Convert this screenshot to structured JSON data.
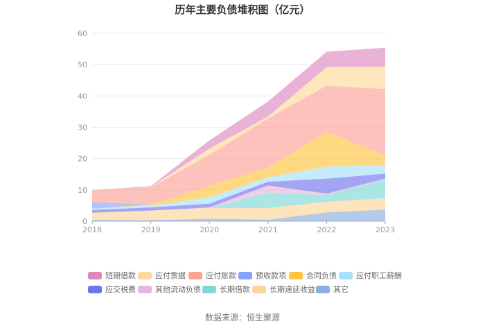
{
  "chart_data": {
    "type": "area",
    "stacked": true,
    "title": "历年主要负债堆积图（亿元）",
    "source": "数据来源：恒生聚源",
    "xlabel": "",
    "ylabel": "",
    "ylim": [
      0,
      60
    ],
    "yticks": [
      "0",
      "10",
      "20",
      "30",
      "40",
      "50",
      "60"
    ],
    "categories": [
      "2018",
      "2019",
      "2020",
      "2021",
      "2022",
      "2023"
    ],
    "grid": true,
    "legend_position": "bottom",
    "series": [
      {
        "name": "其它",
        "color": "#8aaee0",
        "values": [
          0.4,
          0.3,
          0.8,
          0.5,
          2.8,
          3.7
        ]
      },
      {
        "name": "长期递延收益",
        "color": "#fdd59a",
        "values": [
          2.3,
          3.1,
          3.4,
          3.7,
          3.4,
          3.6
        ]
      },
      {
        "name": "长期借款",
        "color": "#7fd8d6",
        "values": [
          0,
          0,
          0,
          5.0,
          2.2,
          6.1
        ]
      },
      {
        "name": "其他流动负债",
        "color": "#e8b6da",
        "values": [
          0,
          0,
          0.2,
          2.2,
          0.4,
          0.2
        ]
      },
      {
        "name": "应交税费",
        "color": "#7373f0",
        "values": [
          0.9,
          1.0,
          1.2,
          1.2,
          4.8,
          1.6
        ]
      },
      {
        "name": "应付职工薪酬",
        "color": "#a6e0fc",
        "values": [
          0.4,
          0.6,
          2.0,
          1.4,
          3.8,
          2.8
        ]
      },
      {
        "name": "合同负债",
        "color": "#ffc53d",
        "values": [
          0,
          0.4,
          3.6,
          3.2,
          11.1,
          3.0
        ]
      },
      {
        "name": "预收款项",
        "color": "#85a4f8",
        "values": [
          2.0,
          0,
          0,
          0,
          0,
          0
        ]
      },
      {
        "name": "应付账款",
        "color": "#fba196",
        "values": [
          3.8,
          5.4,
          10.0,
          15.6,
          14.8,
          21.2
        ]
      },
      {
        "name": "应付票据",
        "color": "#fdd89a",
        "values": [
          0,
          0.1,
          2.0,
          0.6,
          5.9,
          7.2
        ]
      },
      {
        "name": "短期借款",
        "color": "#dd88c0",
        "values": [
          0.1,
          0.3,
          2.6,
          4.8,
          4.9,
          6.0
        ]
      }
    ],
    "legend_order": [
      "短期借款",
      "应付票据",
      "应付账款",
      "预收款项",
      "合同负债",
      "应付职工薪酬",
      "应交税费",
      "其他流动负债",
      "长期借款",
      "长期递延收益",
      "其它"
    ]
  }
}
